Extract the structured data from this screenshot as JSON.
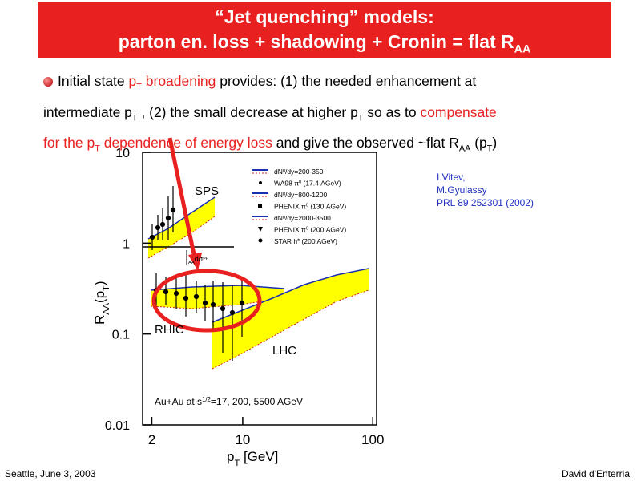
{
  "title": {
    "lines": [
      [
        {
          "text": "“Jet quenching” models:"
        }
      ],
      [
        {
          "text": "parton en. loss + shadowing + Cronin = flat R"
        },
        {
          "text": "AA",
          "sub": true
        }
      ]
    ]
  },
  "body": {
    "color": "#e8201f",
    "lines": [
      [
        {
          "text": "Initial state "
        },
        {
          "text": "p",
          "red": true
        },
        {
          "text": "T",
          "red": true,
          "sub": true
        },
        {
          "text": " broadening",
          "red": true
        },
        {
          "text": " provides: (1) the needed enhancement at"
        }
      ],
      [
        {
          "text": "intermediate p"
        },
        {
          "text": "T",
          "sub": true
        },
        {
          "text": " ,  (2) the small decrease at higher p"
        },
        {
          "text": "T",
          "sub": true
        },
        {
          "text": " so as to "
        },
        {
          "text": "compensate",
          "red": true
        }
      ],
      [
        {
          "text": "for the p",
          "red": true
        },
        {
          "text": "T",
          "red": true,
          "sub": true
        },
        {
          "text": " dependence of energy loss",
          "red": true
        },
        {
          "text": " and give the observed ~flat R"
        },
        {
          "text": "AA",
          "sub": true
        },
        {
          "text": " (p"
        },
        {
          "text": "T",
          "sub": true
        },
        {
          "text": ")"
        }
      ]
    ]
  },
  "citation": {
    "lines": [
      "I.Vitev,",
      "M.Gyulassy",
      "PRL 89 252301 (2002)"
    ]
  },
  "figure": {
    "xlim": [
      1.7,
      107
    ],
    "ylim": [
      0.01,
      10
    ],
    "log": true,
    "xticks": [
      2,
      10,
      100
    ],
    "yticks": [
      10,
      1,
      0.1,
      0.01
    ],
    "xlabel": [
      {
        "text": "p"
      },
      {
        "text": "T",
        "sub": true
      },
      {
        "text": " [GeV]"
      }
    ],
    "ylabel": [
      {
        "text": "R"
      },
      {
        "text": "AA",
        "sub": true
      },
      {
        "text": "(p"
      },
      {
        "text": "T",
        "sub": true
      },
      {
        "text": ")"
      }
    ],
    "annotations": [
      [
        {
          "text": "SPS"
        }
      ],
      [
        {
          "text": "RHIC"
        }
      ],
      [
        {
          "text": "LHC"
        }
      ],
      [
        {
          "text": "AA",
          "sub": true
        },
        {
          "text": "dσ"
        },
        {
          "text": "pp",
          "sup": true
        }
      ],
      [
        {
          "text": "Au+Au at s"
        },
        {
          "text": "1/2",
          "sup": true
        },
        {
          "text": "=17, 200, 5500 AGeV"
        }
      ]
    ],
    "legend": [
      [
        {
          "text": "dN"
        },
        {
          "text": "g",
          "sup": true
        },
        {
          "text": "/dy=200-350"
        }
      ],
      [
        {
          "text": "WA98 π"
        },
        {
          "text": "0",
          "sup": true
        },
        {
          "text": " (17.4 AGeV)"
        }
      ],
      [
        {
          "text": "dN"
        },
        {
          "text": "g",
          "sup": true
        },
        {
          "text": "/dy=800-1200"
        }
      ],
      [
        {
          "text": "PHENIX π"
        },
        {
          "text": "0",
          "sup": true
        },
        {
          "text": " (130 AGeV)"
        }
      ],
      [
        {
          "text": "dN"
        },
        {
          "text": "g",
          "sup": true
        },
        {
          "text": "/dy=2000-3500"
        }
      ],
      [
        {
          "text": "PHENIX π"
        },
        {
          "text": "0",
          "sup": true
        },
        {
          "text": " (200 AGeV)"
        }
      ],
      [
        {
          "text": "STAR h"
        },
        {
          "text": "±",
          "sup": true
        },
        {
          "text": " (200 AGeV)"
        }
      ]
    ]
  },
  "footer": {
    "left": "Seattle, June  3, 2003",
    "right": "David d'Enterria"
  }
}
